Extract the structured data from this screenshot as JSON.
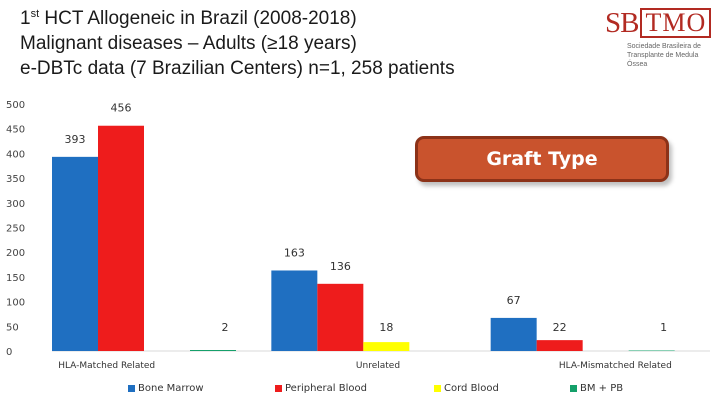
{
  "title": {
    "line1_prefix": "1",
    "line1_sup": "st",
    "line1_rest": " HCT Allogeneic in Brazil (2008-2018)",
    "line2": "Malignant diseases – Adults (≥18 years)",
    "line3": "e-DBTc data (7 Brazilian Centers) n=1, 258 patients"
  },
  "logo": {
    "left": "SB",
    "right": "TMO",
    "subtitle_line1": "Sociedade Brasileira de",
    "subtitle_line2": "Transplante de Medula Óssea"
  },
  "badge": {
    "label": "Graft Type"
  },
  "chart_data": {
    "type": "bar",
    "categories": [
      "HLA-Matched Related",
      "Unrelated",
      "HLA-Mismatched Related"
    ],
    "series": [
      {
        "name": "Bone Marrow",
        "color": "#1f6fc1",
        "values": [
          393,
          163,
          67
        ]
      },
      {
        "name": "Peripheral Blood",
        "color": "#ee1c1c",
        "values": [
          456,
          136,
          22
        ]
      },
      {
        "name": "Cord Blood",
        "color": "#ffff00",
        "values": [
          null,
          18,
          null
        ]
      },
      {
        "name": "BM + PB",
        "color": "#14a06a",
        "values": [
          2,
          null,
          1
        ]
      }
    ],
    "data_labels": [
      [
        "393",
        "456",
        "",
        "2"
      ],
      [
        "163",
        "136",
        "18",
        ""
      ],
      [
        "67",
        "22",
        "",
        "1"
      ]
    ],
    "yticks": [
      0,
      50,
      100,
      150,
      200,
      250,
      300,
      350,
      400,
      450,
      500
    ],
    "ylim": [
      0,
      500
    ],
    "grid": false,
    "legend": "bottom"
  }
}
